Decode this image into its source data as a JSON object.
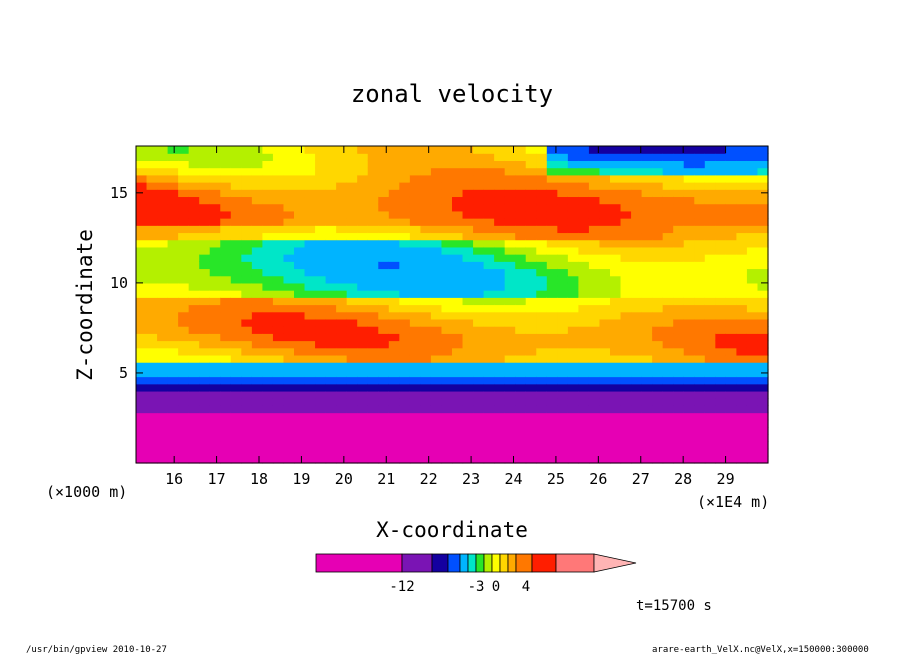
{
  "chart_data": {
    "type": "heatmap",
    "title": "zonal velocity",
    "xlabel": "X-coordinate",
    "ylabel": "Z-coordinate",
    "x_unit_left": "(×1000 m)",
    "x_unit_right": "(×1E4 m)",
    "xlim": [
      15.1,
      30.0
    ],
    "ylim": [
      0.0,
      17.6
    ],
    "x_ticks": [
      "16",
      "17",
      "18",
      "19",
      "20",
      "21",
      "22",
      "23",
      "24",
      "25",
      "26",
      "27",
      "28",
      "29"
    ],
    "x_tick_values": [
      16,
      17,
      18,
      19,
      20,
      21,
      22,
      23,
      24,
      25,
      26,
      27,
      28,
      29
    ],
    "y_ticks": [
      "5",
      "10",
      "15"
    ],
    "y_tick_values": [
      5,
      10,
      15
    ],
    "time_label": "t=15700 s",
    "footer_left": "/usr/bin/gpview  2010-10-27",
    "footer_right": "arare-earth_VelX.nc@VelX,x=150000:300000",
    "colorbar": {
      "levels": [
        -20,
        -12,
        -9,
        -6,
        -4.5,
        -3,
        -2,
        -1,
        0,
        1,
        2,
        3,
        4,
        6,
        10
      ],
      "colors": [
        "#e600b4",
        "#7a14b4",
        "#1400a0",
        "#0050ff",
        "#00b4ff",
        "#00e6c8",
        "#28e628",
        "#b4f000",
        "#ffff00",
        "#ffd700",
        "#ffaa00",
        "#ff7800",
        "#ff1e00",
        "#ff7878",
        "#ffb4b4"
      ],
      "tick_labels": [
        "-12",
        "-3",
        "0",
        "4"
      ],
      "tick_values": [
        -12,
        -3,
        0,
        4
      ]
    },
    "field_description": "bands of velocity varying with height: strong negative near bottom, alternating positive/negative layers aloft",
    "grid": false,
    "legend": "colorbar-bottom"
  }
}
